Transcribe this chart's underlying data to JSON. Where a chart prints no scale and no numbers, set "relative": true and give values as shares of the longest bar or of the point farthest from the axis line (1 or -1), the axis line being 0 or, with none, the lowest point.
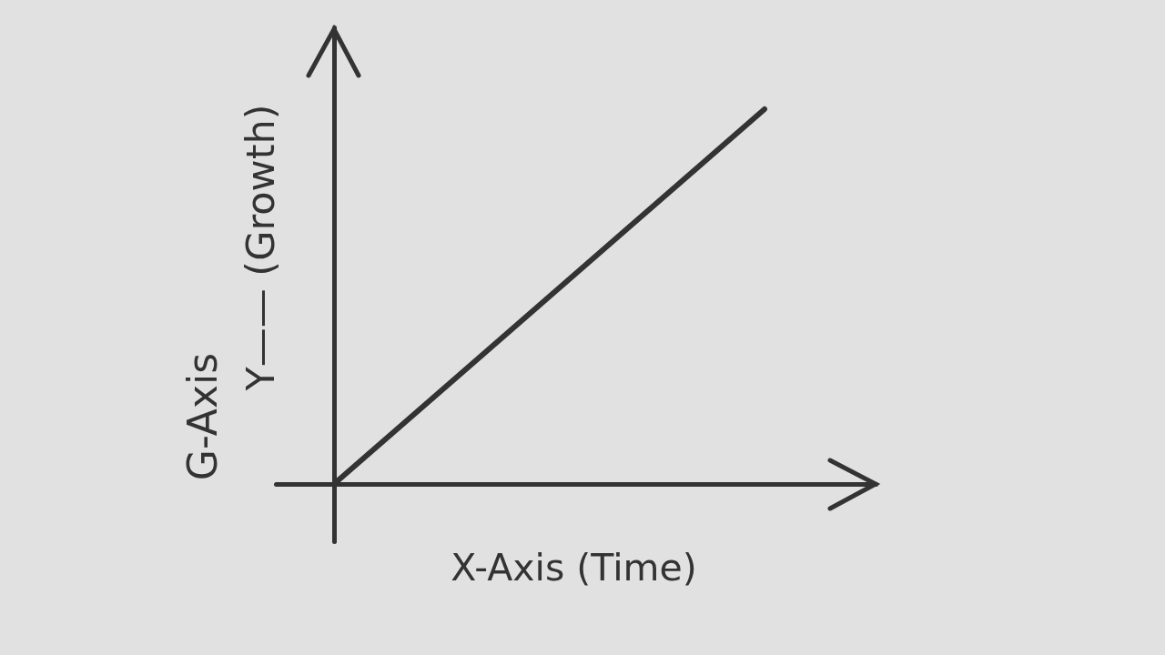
{
  "chart_data": {
    "type": "line",
    "relative": true,
    "categories": [
      null,
      null
    ],
    "series": [
      {
        "color": "#333333",
        "values": [
          0,
          1
        ]
      }
    ],
    "xlabel": "X-Axis (Time)",
    "annotations": [
      "G-Axis",
      "Y—— (Growth)"
    ]
  }
}
